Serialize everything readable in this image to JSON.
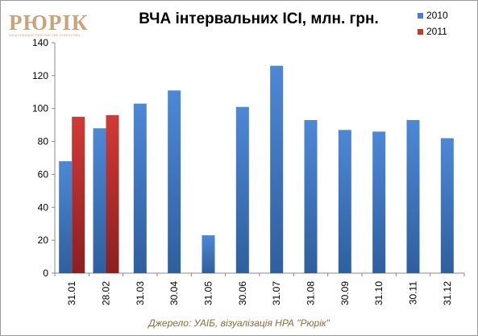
{
  "logo": {
    "main": "РЮРІК",
    "sub": "НАЦІОНАЛЬНЕ РЕЙТИНГОВЕ АГЕНТСТВО"
  },
  "chart_data": {
    "type": "bar",
    "title": "ВЧА інтервальних ІСІ, млн. грн.",
    "categories": [
      "31.01",
      "28.02",
      "31.03",
      "30.04",
      "31.05",
      "30.06",
      "31.07",
      "31.08",
      "30.09",
      "31.10",
      "30.11",
      "31.12"
    ],
    "series": [
      {
        "name": "2010",
        "color": "#4a7fcc",
        "values": [
          68,
          88,
          103,
          111,
          23,
          101,
          126,
          93,
          87,
          86,
          93,
          82
        ]
      },
      {
        "name": "2011",
        "color": "#c0392b",
        "values": [
          95,
          96,
          null,
          null,
          null,
          null,
          null,
          null,
          null,
          null,
          null,
          null
        ]
      }
    ],
    "ylim": [
      0,
      140
    ],
    "yticks": [
      0,
      20,
      40,
      60,
      80,
      100,
      120,
      140
    ],
    "grid": false,
    "legend": "top-right",
    "source": "Джерело: УАІБ, візуалізація НРА \"Рюрік\""
  }
}
